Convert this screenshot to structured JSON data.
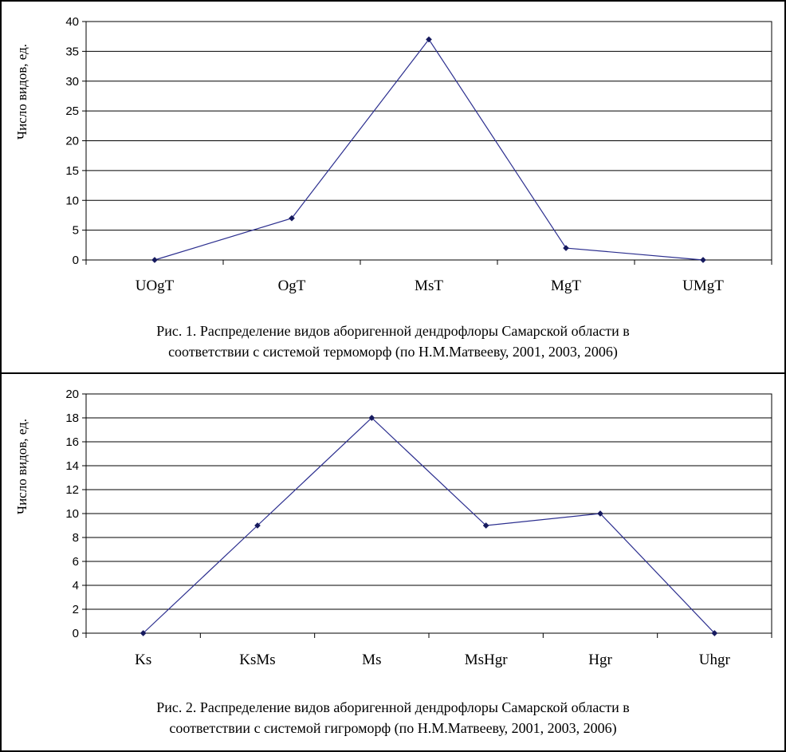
{
  "colors": {
    "line": "#2c2f8f",
    "marker": "#161a5e",
    "grid": "#000000",
    "border": "#000000"
  },
  "charts": [
    {
      "caption_line1": "Рис. 1.  Распределение видов аборигенной дендрофлоры Самарской области  в",
      "caption_line2": "соответствии с системой термоморф (по Н.М.Матвееву, 2001, 2003, 2006)"
    },
    {
      "caption_line1": "Рис. 2.  Распределение видов аборигенной дендрофлоры Самарской области  в",
      "caption_line2": "соответствии с системой гигроморф (по Н.М.Матвееву, 2001, 2003, 2006)"
    }
  ],
  "chart_data": [
    {
      "type": "line",
      "categories": [
        "UOgT",
        "OgT",
        "MsT",
        "MgT",
        "UMgT"
      ],
      "values": [
        0,
        7,
        37,
        2,
        0
      ],
      "ylabel": "Число видов, ед.",
      "ylim": [
        0,
        40
      ],
      "yticks": [
        0,
        5,
        10,
        15,
        20,
        25,
        30,
        35,
        40
      ],
      "grid": true
    },
    {
      "type": "line",
      "categories": [
        "Ks",
        "KsMs",
        "Ms",
        "MsHgr",
        "Hgr",
        "Uhgr"
      ],
      "values": [
        0,
        9,
        18,
        9,
        10,
        0
      ],
      "ylabel": "Число видов, ед.",
      "ylim": [
        0,
        20
      ],
      "yticks": [
        0,
        2,
        4,
        6,
        8,
        10,
        12,
        14,
        16,
        18,
        20
      ],
      "grid": true
    }
  ]
}
